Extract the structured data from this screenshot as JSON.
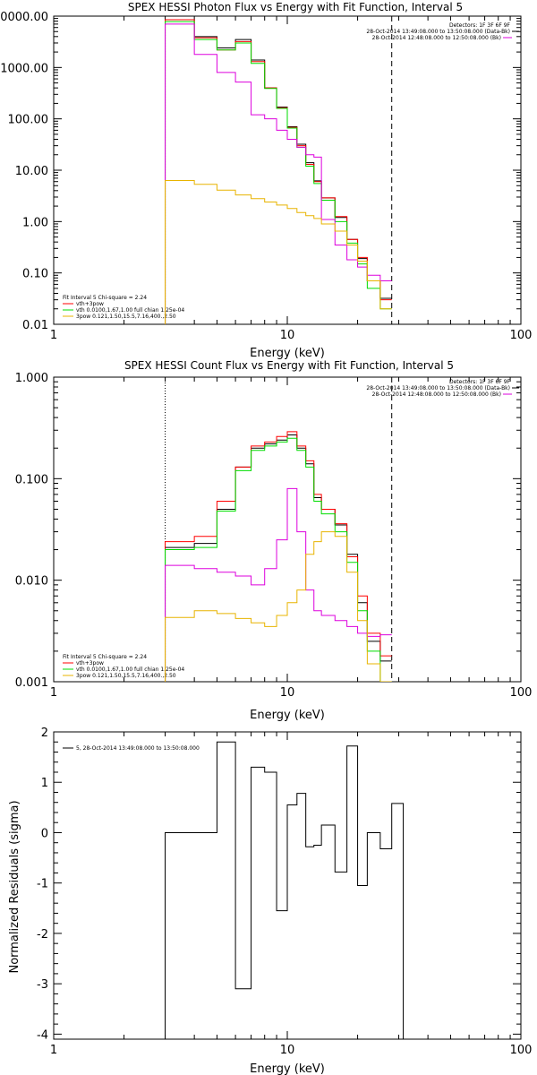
{
  "colors": {
    "black": "#000000",
    "red": "#ff0000",
    "green": "#00dd00",
    "magenta": "#dd00dd",
    "orange": "#e8b400"
  },
  "chart_data": [
    {
      "type": "line",
      "title": "SPEX HESSI Photon Flux vs Energy with Fit Function, Interval 5",
      "xlabel": "Energy (keV)",
      "ylabel": "",
      "xscale": "log",
      "yscale": "log",
      "xlim": [
        1,
        100
      ],
      "ylim": [
        0.01,
        10000
      ],
      "xticks": [
        "1",
        "10",
        "100"
      ],
      "yticks": [
        "0000.00",
        "1000.00",
        "100.00",
        "10.00",
        "1.00",
        "0.10",
        "0.01"
      ],
      "ytick_values": [
        10000,
        1000,
        100,
        10,
        1,
        0.1,
        0.01
      ],
      "legend_right": [
        "Detectors: 1F 3F 6F 9F",
        "28-Oct-2014 13:49:08.000 to 13:50:08.000 (Data-Bk)",
        "28-Oct-2014 12:48:08.000 to 12:50:08.000 (Bk)"
      ],
      "legend_left": [
        "Fit Interval 5   Chi-square = 2.24",
        "vth+3pow",
        "vth 0.0100,1.67,1.00  full chian 1.25e-04",
        "3pow 0.121,1.50,15.5,7.16,400.,2.50"
      ],
      "vlines": {
        "dotted_x": 3.0,
        "dashed_x": 28.0
      },
      "bin_edges": [
        3,
        4,
        5,
        6,
        7,
        8,
        9,
        10,
        11,
        12,
        13,
        14,
        16,
        18,
        20,
        22,
        25,
        28
      ],
      "series": [
        {
          "color": "black",
          "values": [
            8500,
            4000,
            2400,
            3500,
            1400,
            400,
            170,
            70,
            32,
            14,
            6.2,
            2.9,
            1.2,
            0.45,
            0.19,
            0.07,
            0.032
          ]
        },
        {
          "color": "red",
          "values": [
            8500,
            3800,
            2200,
            3200,
            1300,
            400,
            165,
            68,
            30,
            13,
            6.0,
            2.9,
            1.25,
            0.45,
            0.2,
            0.07,
            0.03
          ]
        },
        {
          "color": "green",
          "values": [
            7800,
            3500,
            2200,
            3000,
            1200,
            390,
            160,
            66,
            28,
            12,
            5.5,
            2.6,
            1.0,
            0.38,
            0.15,
            0.05,
            0.02
          ]
        },
        {
          "color": "magenta",
          "values": [
            7000,
            1800,
            800,
            520,
            120,
            100,
            60,
            40,
            28,
            20,
            18,
            1.1,
            0.35,
            0.18,
            0.13,
            0.09,
            0.07
          ]
        },
        {
          "color": "orange",
          "values": [
            6.3,
            5.3,
            4.1,
            3.3,
            2.8,
            2.4,
            2.1,
            1.8,
            1.5,
            1.3,
            1.15,
            0.9,
            0.65,
            0.35,
            0.17,
            0.07,
            0.02
          ]
        }
      ]
    },
    {
      "type": "line",
      "title": "SPEX HESSI Count Flux vs Energy with Fit Function, Interval 5",
      "xlabel": "Energy (keV)",
      "ylabel": "",
      "xscale": "log",
      "yscale": "log",
      "xlim": [
        1,
        100
      ],
      "ylim": [
        0.001,
        1.0
      ],
      "xticks": [
        "1",
        "10",
        "100"
      ],
      "yticks": [
        "1.000",
        "0.100",
        "0.010",
        "0.001"
      ],
      "ytick_values": [
        1.0,
        0.1,
        0.01,
        0.001
      ],
      "legend_right": [
        "Detectors: 1F 3F 6F 9F",
        "28-Oct-2014 13:49:08.000 to 13:50:08.000 (Data-Bk)",
        "28-Oct-2014 12:48:08.000 to 12:50:08.000 (Bk)"
      ],
      "legend_left": [
        "Fit Interval 5   Chi-square = 2.24",
        "vth+3pow",
        "vth 0.0100,1.67,1.00  full chian 1.25e-04",
        "3pow 0.121,1.50,15.5,7.16,400.,2.50"
      ],
      "vlines": {
        "dotted_x": 3.0,
        "dashed_x": 28.0
      },
      "bin_edges": [
        3,
        4,
        5,
        6,
        7,
        8,
        9,
        10,
        11,
        12,
        13,
        14,
        16,
        18,
        20,
        22,
        25,
        28
      ],
      "series": [
        {
          "color": "black",
          "values": [
            0.021,
            0.023,
            0.05,
            0.13,
            0.2,
            0.22,
            0.24,
            0.27,
            0.2,
            0.14,
            0.065,
            0.05,
            0.035,
            0.018,
            0.006,
            0.0025,
            0.0016
          ]
        },
        {
          "color": "red",
          "values": [
            0.024,
            0.027,
            0.06,
            0.13,
            0.21,
            0.23,
            0.26,
            0.29,
            0.21,
            0.15,
            0.07,
            0.05,
            0.036,
            0.017,
            0.007,
            0.003,
            0.0018
          ]
        },
        {
          "color": "green",
          "values": [
            0.02,
            0.021,
            0.048,
            0.12,
            0.19,
            0.21,
            0.23,
            0.25,
            0.19,
            0.13,
            0.06,
            0.045,
            0.03,
            0.015,
            0.005,
            0.002,
            0.0009
          ]
        },
        {
          "color": "magenta",
          "values": [
            0.014,
            0.013,
            0.012,
            0.011,
            0.009,
            0.013,
            0.025,
            0.08,
            0.03,
            0.008,
            0.005,
            0.0045,
            0.004,
            0.0035,
            0.003,
            0.0028,
            0.0029
          ]
        },
        {
          "color": "orange",
          "values": [
            0.0043,
            0.005,
            0.0047,
            0.0042,
            0.0038,
            0.0035,
            0.0045,
            0.006,
            0.008,
            0.018,
            0.024,
            0.03,
            0.027,
            0.012,
            0.004,
            0.0015,
            0.0009
          ]
        }
      ]
    },
    {
      "type": "line",
      "title": "",
      "xlabel": "Energy (keV)",
      "ylabel": "Normalized Residuals (sigma)",
      "xscale": "log",
      "yscale": "linear",
      "xlim": [
        1,
        100
      ],
      "ylim": [
        -4.1,
        2.0
      ],
      "xticks": [
        "1",
        "10",
        "100"
      ],
      "yticks": [
        "2",
        "1",
        "0",
        "-1",
        "-2",
        "-3",
        "-4"
      ],
      "ytick_values": [
        2,
        1,
        0,
        -1,
        -2,
        -3,
        -4
      ],
      "legend_left": [
        "5, 28-Oct-2014 13:49:08.000 to 13:50:08.000"
      ],
      "bin_edges": [
        3,
        4,
        5,
        6,
        7,
        8,
        9,
        10,
        11,
        12,
        13,
        14,
        16,
        18,
        20,
        22,
        25,
        28
      ],
      "series": [
        {
          "color": "black",
          "values": [
            0.0,
            0.0,
            1.8,
            -3.1,
            1.3,
            1.2,
            -1.55,
            0.55,
            0.78,
            -0.28,
            -0.25,
            0.15,
            -0.78,
            1.72,
            -1.05,
            0.0,
            -0.32,
            0.58
          ]
        }
      ]
    }
  ]
}
